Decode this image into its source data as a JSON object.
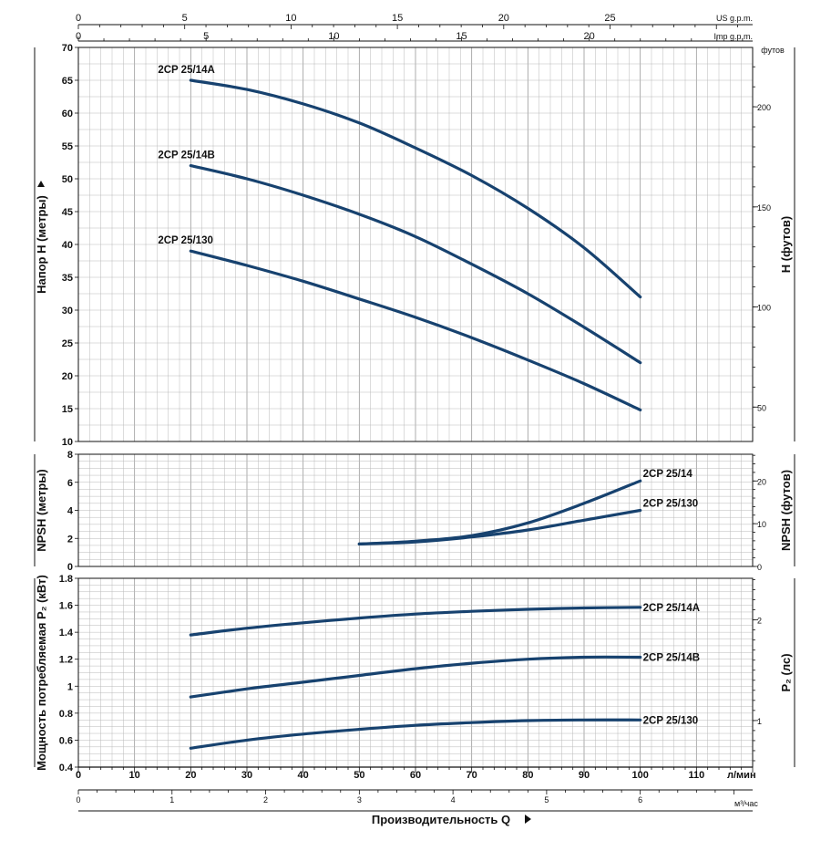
{
  "chart_data": {
    "type": "line",
    "x_top_axes": {
      "us_gpm_label": "US g.p.m.",
      "us_gpm_ticks": [
        "0",
        "5",
        "10",
        "15",
        "20",
        "25"
      ],
      "imp_gpm_label": "Imp g.p.m.",
      "imp_gpm_ticks": [
        "0",
        "5",
        "10",
        "15",
        "20"
      ]
    },
    "x_bottom_axes": {
      "lmin_label": "л/мин",
      "lmin_ticks": [
        "0",
        "10",
        "20",
        "30",
        "40",
        "50",
        "60",
        "70",
        "80",
        "90",
        "100",
        "110"
      ],
      "m3h_label": "м³/час",
      "m3h_ticks": [
        "0",
        "1",
        "2",
        "3",
        "4",
        "5",
        "6"
      ],
      "xlabel": "Производительность Q",
      "xlim": [
        0,
        120
      ]
    },
    "panels": [
      {
        "id": "head",
        "ylabel_left": "Напор H  (метры)",
        "ylabel_right": "H (футов)",
        "right_unit": "футов",
        "ylim": [
          10,
          70
        ],
        "yticks_left": [
          "70",
          "65",
          "60",
          "55",
          "50",
          "45",
          "40",
          "35",
          "30",
          "25",
          "20",
          "15",
          "10"
        ],
        "yticks_right": [
          "200",
          "150",
          "100",
          "50"
        ],
        "series": [
          {
            "name": "2CP 25/14A",
            "x": [
              20,
              30,
              40,
              50,
              60,
              70,
              80,
              90,
              100
            ],
            "y": [
              65,
              63.6,
              61.4,
              58.5,
              54.7,
              50.5,
              45.5,
              39.5,
              32
            ]
          },
          {
            "name": "2CP 25/14B",
            "x": [
              20,
              30,
              40,
              50,
              60,
              70,
              80,
              90,
              100
            ],
            "y": [
              52,
              50,
              47.5,
              44.6,
              41.2,
              37,
              32.5,
              27.4,
              22
            ]
          },
          {
            "name": "2CP 25/130",
            "x": [
              20,
              30,
              40,
              50,
              60,
              70,
              80,
              90,
              100
            ],
            "y": [
              39,
              36.8,
              34.4,
              31.7,
              28.9,
              25.8,
              22.4,
              18.8,
              14.8
            ]
          }
        ]
      },
      {
        "id": "npsh",
        "ylabel_left": "NPSH (метры)",
        "ylabel_right": "NPSH  (футов)",
        "ylim": [
          0,
          8
        ],
        "yticks_left": [
          "8",
          "6",
          "4",
          "2",
          "0"
        ],
        "yticks_right": [
          "20",
          "10",
          "0"
        ],
        "series": [
          {
            "name": "2CP 25/14",
            "x": [
              50,
              60,
              70,
              80,
              90,
              100
            ],
            "y": [
              1.6,
              1.8,
              2.2,
              3.1,
              4.5,
              6.1
            ]
          },
          {
            "name": "2CP 25/130",
            "x": [
              50,
              60,
              70,
              80,
              90,
              100
            ],
            "y": [
              1.6,
              1.75,
              2.1,
              2.6,
              3.3,
              4.0
            ]
          }
        ]
      },
      {
        "id": "power",
        "ylabel_left": "Мощность потребляемая P₂ (кВт)",
        "ylabel_right": "P₂ (лс)",
        "ylim": [
          0.4,
          1.8
        ],
        "yticks_left": [
          "1.8",
          "1.6",
          "1.4",
          "1.2",
          "1",
          "0.8",
          "0.6",
          "0.4"
        ],
        "yticks_right": [
          "2",
          "1"
        ],
        "series": [
          {
            "name": "2CP 25/14A",
            "x": [
              20,
              30,
              40,
              50,
              60,
              70,
              80,
              90,
              100
            ],
            "y": [
              1.38,
              1.43,
              1.47,
              1.505,
              1.535,
              1.555,
              1.57,
              1.58,
              1.585
            ]
          },
          {
            "name": "2CP 25/14B",
            "x": [
              20,
              30,
              40,
              50,
              60,
              70,
              80,
              90,
              100
            ],
            "y": [
              0.92,
              0.98,
              1.03,
              1.08,
              1.13,
              1.17,
              1.2,
              1.215,
              1.215
            ]
          },
          {
            "name": "2CP 25/130",
            "x": [
              20,
              30,
              40,
              50,
              60,
              70,
              80,
              90,
              100
            ],
            "y": [
              0.54,
              0.6,
              0.645,
              0.68,
              0.71,
              0.73,
              0.745,
              0.75,
              0.75
            ]
          }
        ]
      }
    ]
  },
  "colors": {
    "curve": "#17426f",
    "grid": "#b9b9b9",
    "axis": "#111111"
  }
}
